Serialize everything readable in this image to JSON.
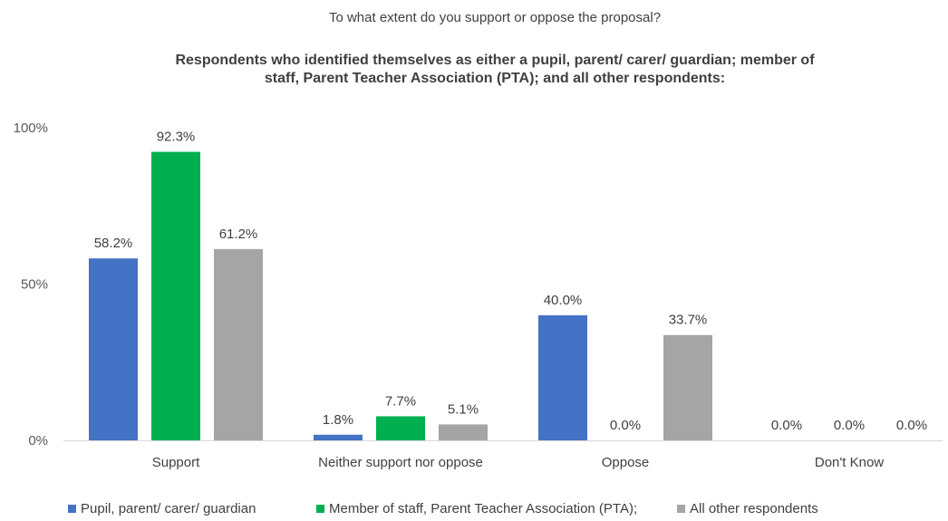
{
  "chart_data": {
    "type": "bar",
    "title": "To what extent do you support or oppose the proposal?",
    "subtitle_lines": [
      "Respondents who identified themselves as either a pupil, parent/ carer/ guardian; member of",
      "staff, Parent Teacher Association (PTA); and all other respondents:"
    ],
    "categories": [
      "Support",
      "Neither support nor oppose",
      "Oppose",
      "Don't Know"
    ],
    "series": [
      {
        "name": "Pupil, parent/ carer/ guardian",
        "color": "#4472C4",
        "values": [
          58.2,
          1.8,
          40.0,
          0.0
        ],
        "labels": [
          "58.2%",
          "1.8%",
          "40.0%",
          "0.0%"
        ]
      },
      {
        "name": "Member of staff, Parent Teacher Association (PTA);",
        "color": "#00B050",
        "values": [
          92.3,
          7.7,
          0.0,
          0.0
        ],
        "labels": [
          "92.3%",
          "7.7%",
          "0.0%",
          "0.0%"
        ]
      },
      {
        "name": "All other respondents",
        "color": "#A5A5A5",
        "values": [
          61.2,
          5.1,
          33.7,
          0.0
        ],
        "labels": [
          "61.2%",
          "5.1%",
          "33.7%",
          "0.0%"
        ]
      }
    ],
    "yticks": [
      "0%",
      "50%",
      "100%"
    ],
    "ylim": [
      0,
      100
    ],
    "grid": false,
    "legend_position": "bottom"
  }
}
